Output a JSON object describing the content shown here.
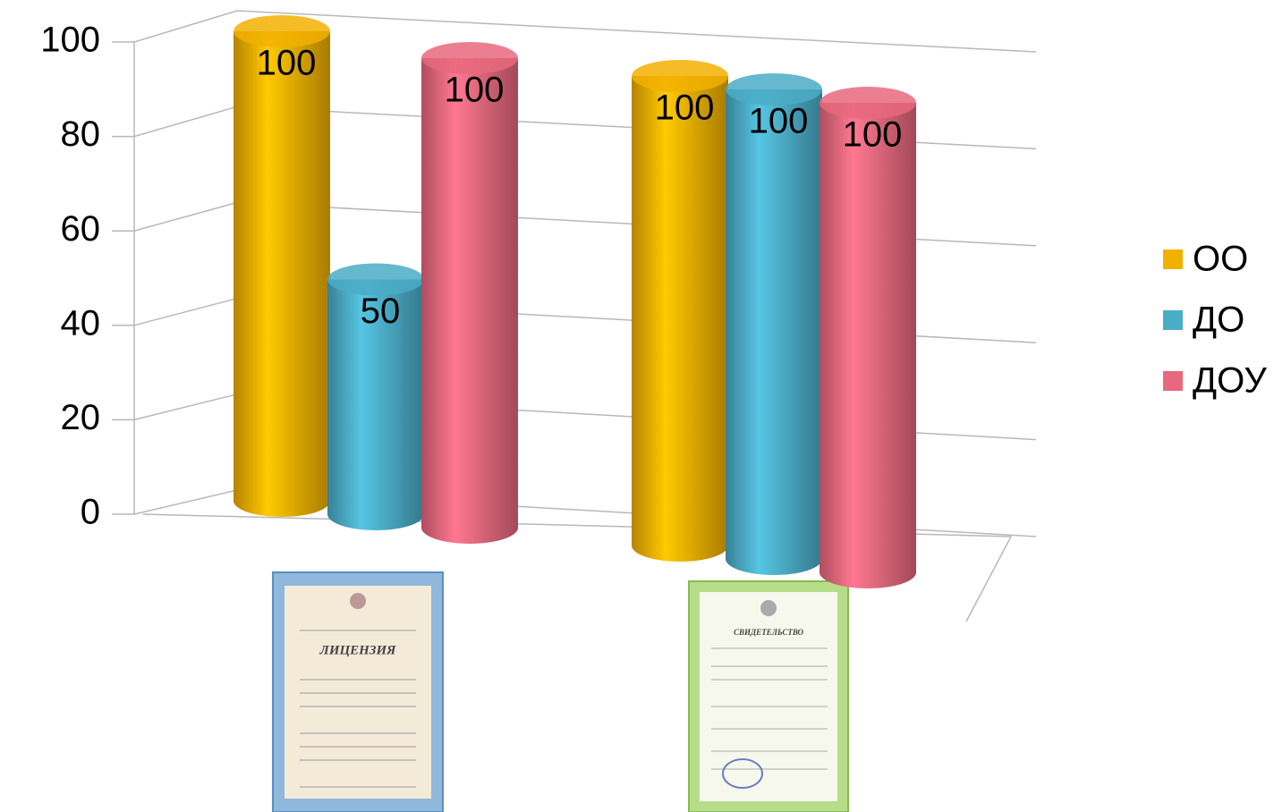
{
  "chart_data": {
    "type": "bar3d",
    "categories": [
      null,
      null
    ],
    "series": [
      {
        "name": "ОО",
        "color": "#f2b000",
        "values": [
          100,
          100
        ]
      },
      {
        "name": "ДО",
        "color": "#4bacc6",
        "values": [
          50,
          100
        ]
      },
      {
        "name": "ДОУ",
        "color": "#e8687e",
        "values": [
          100,
          100
        ]
      }
    ],
    "ylim": [
      0,
      100
    ],
    "yticks": [
      0,
      20,
      40,
      60,
      80,
      100
    ],
    "grid": true,
    "legend": "right",
    "annotations": [
      "ЛИЦЕНЗИЯ",
      "СВИДЕТЕЛЬСТВО"
    ]
  }
}
